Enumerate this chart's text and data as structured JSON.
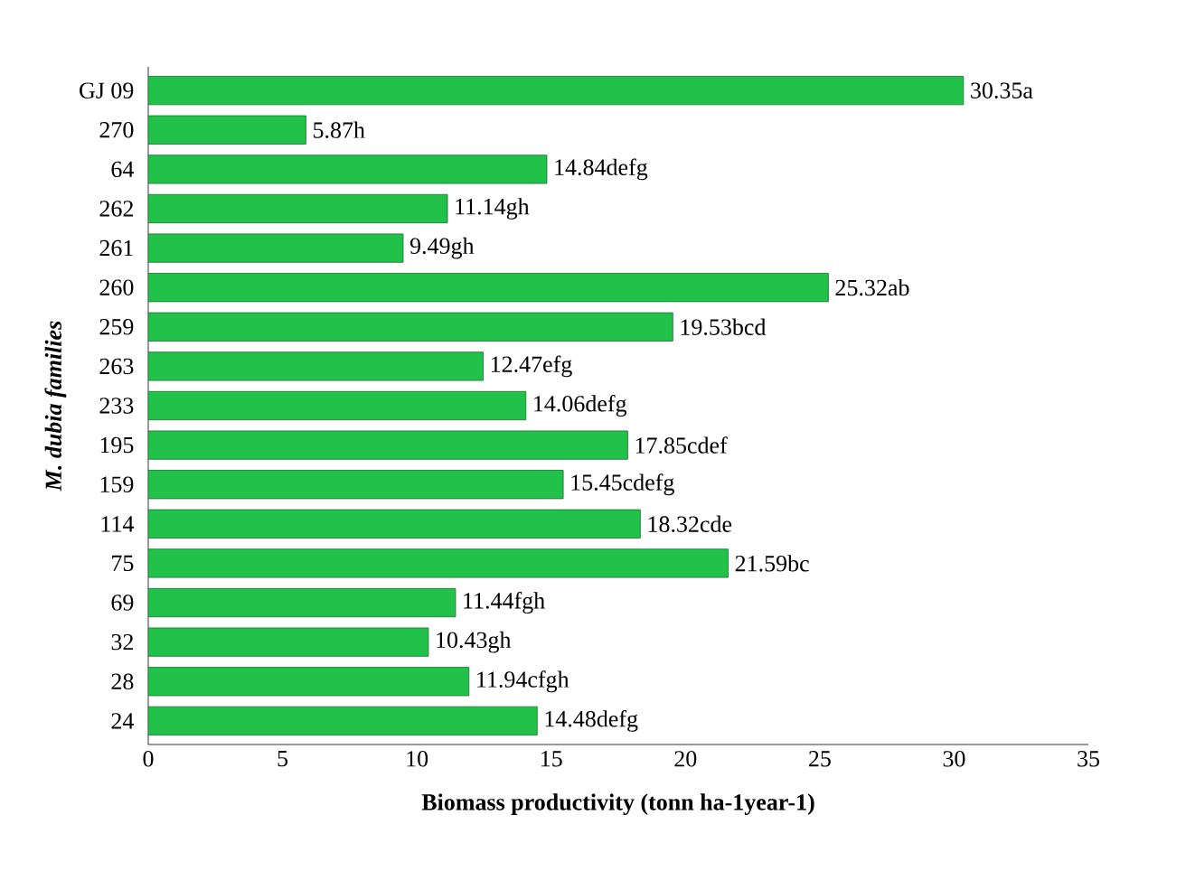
{
  "chart_data": {
    "type": "bar",
    "orientation": "horizontal",
    "xlabel": "Biomass productivity (tonn ha-1year-1)",
    "ylabel": "M. dubia families",
    "categories": [
      "GJ 09",
      "270",
      "64",
      "262",
      "261",
      "260",
      "259",
      "263",
      "233",
      "195",
      "159",
      "114",
      "75",
      "69",
      "32",
      "28",
      "24"
    ],
    "values": [
      30.35,
      5.87,
      14.84,
      11.14,
      9.49,
      25.32,
      19.53,
      12.47,
      14.06,
      17.85,
      15.45,
      18.32,
      21.59,
      11.44,
      10.43,
      11.94,
      14.48
    ],
    "value_labels": [
      "30.35a",
      "5.87h",
      "14.84defg",
      "11.14gh",
      "9.49gh",
      "25.32ab",
      "19.53bcd",
      "12.47efg",
      "14.06defg",
      "17.85cdef",
      "15.45cdefg",
      "18.32cde",
      "21.59bc",
      "11.44fgh",
      "10.43gh",
      "11.94cfgh",
      "14.48defg"
    ],
    "color": "#22c14a",
    "xlim": [
      0,
      35
    ],
    "xticks": [
      0,
      5,
      10,
      15,
      20,
      25,
      30,
      35
    ],
    "grid": false
  }
}
